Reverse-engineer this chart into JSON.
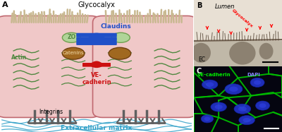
{
  "panel_A_label": "A",
  "panel_B_label": "B",
  "panel_C_label": "C",
  "glycocalyx_label": "Glycocalyx",
  "ZO_label": "ZO",
  "claudins_label": "Claudins",
  "actin_label": "Actin",
  "catenins_label": "Catenins",
  "integrins_label": "Integrins",
  "ve_cadherin_label": "VE-\ncadherin",
  "ecm_label": "Extracellular matrix",
  "lumen_label": "Lumen",
  "glycocalyx_b_label": "Glycocalyx",
  "ec_label": "EC",
  "ve_cadherin_c_label": "VE-cadherin",
  "dapi_label": "DAPI",
  "bg_color": "#ffffff",
  "cell_fill": "#f0c8c8",
  "cell_border": "#c06870",
  "glycocalyx_color": "#c8b890",
  "zo_fill": "#b0d498",
  "zo_border": "#70a050",
  "catenin_fill": "#a06820",
  "catenin_border": "#704010",
  "claudin_color": "#2050c8",
  "ve_cadherin_color": "#cc1010",
  "actin_color": "#508840",
  "integrin_color": "#606060",
  "ecm_color": "#30a0c8",
  "actin_dash_color": "#304820"
}
